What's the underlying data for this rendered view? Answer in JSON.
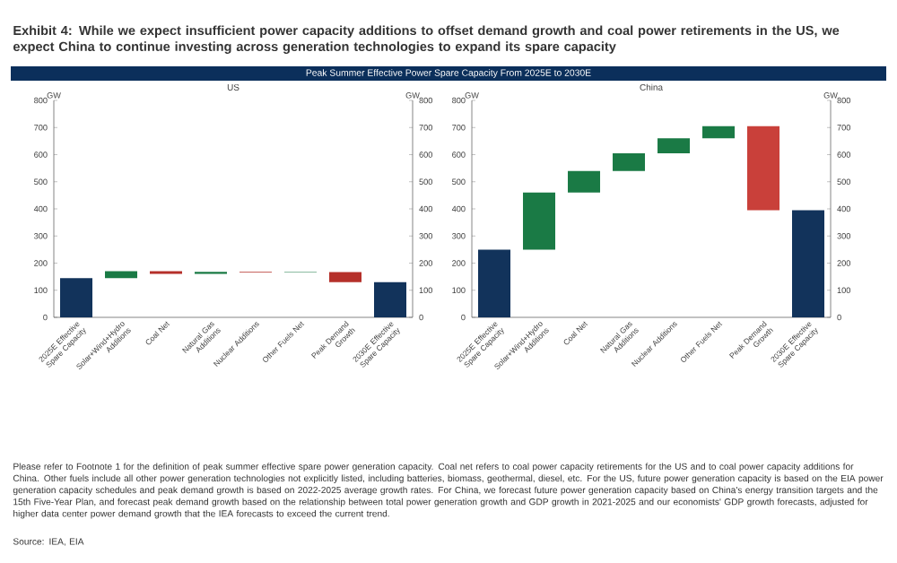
{
  "chart_data": [
    {
      "type": "other",
      "title": "Exhibit 4: While we expect insufficient power capacity additions to offset demand growth and coal power retirements in the US, we expect China to continue investing across generation technologies to expand its spare capacity",
      "subtitle": "Peak Summer Effective Power Spare Capacity From 2025E to 2030E",
      "annotations": [
        "Please refer to Footnote 1 for the definition of peak summer effective spare power generation capacity. Coal net refers to coal power capacity retirements for the US and to coal power capacity additions for China. Other fuels include all other power generation technologies not explicitly listed, including batteries, biomass, geothermal, diesel, etc. For the US, future power generation capacity is based on the EIA power generation capacity schedules and peak demand growth is based on 2022-2025 average growth rates. For China, we forecast future power generation capacity based on China's energy transition targets and the 15th Five-Year Plan, and forecast peak demand growth based on the relationship between total power generation growth and GDP growth in 2021-2025 and our economists' GDP growth forecasts, adjusted for higher data center power demand growth that the IEA forecasts to exceed the current trend.",
        "Source: IEA, EIA"
      ]
    },
    {
      "type": "bar",
      "title": "US",
      "ylabel": "GW",
      "y2label": "GW",
      "categories": [
        "2025E Effective Spare Capacity",
        "Solar+Wind+Hydro Additions",
        "Coal Net",
        "Natural Gas Additions",
        "Nuclear Additions",
        "Other Fuels Net",
        "Peak Demand Growth",
        "2030E Effective Spare Capacity"
      ],
      "values": [
        145,
        25,
        -10,
        8,
        -3,
        2,
        -37,
        130
      ],
      "base": [
        0,
        145,
        170,
        160,
        168,
        165,
        167,
        0
      ],
      "colors": [
        "#12335b",
        "#1a7a45",
        "#b5302a",
        "#1a7a45",
        "#b5302a",
        "#1a7a45",
        "#b5302a",
        "#12335b"
      ],
      "ylim": [
        0,
        800
      ],
      "yticks": [
        0,
        100,
        200,
        300,
        400,
        500,
        600,
        700,
        800
      ],
      "y2lim": [
        0,
        800
      ],
      "y2ticks": [
        0,
        100,
        200,
        300,
        400,
        500,
        600,
        700,
        800
      ]
    },
    {
      "type": "bar",
      "title": "China",
      "ylabel": "GW",
      "y2label": "GW",
      "categories": [
        "2025E Effective Spare Capacity",
        "Solar+Wind+Hydro Additions",
        "Coal Net",
        "Natural Gas Additions",
        "Nuclear Additions",
        "Other Fuels Net",
        "Peak Demand Growth",
        "2030E Effective Spare Capacity"
      ],
      "values": [
        250,
        210,
        80,
        65,
        55,
        45,
        -310,
        395
      ],
      "base": [
        0,
        250,
        460,
        540,
        605,
        660,
        705,
        0
      ],
      "colors": [
        "#12335b",
        "#1a7a45",
        "#1a7a45",
        "#1a7a45",
        "#1a7a45",
        "#1a7a45",
        "#c9403a",
        "#12335b"
      ],
      "ylim": [
        0,
        800
      ],
      "yticks": [
        0,
        100,
        200,
        300,
        400,
        500,
        600,
        700,
        800
      ],
      "y2lim": [
        0,
        800
      ],
      "y2ticks": [
        0,
        100,
        200,
        300,
        400,
        500,
        600,
        700,
        800
      ]
    }
  ]
}
